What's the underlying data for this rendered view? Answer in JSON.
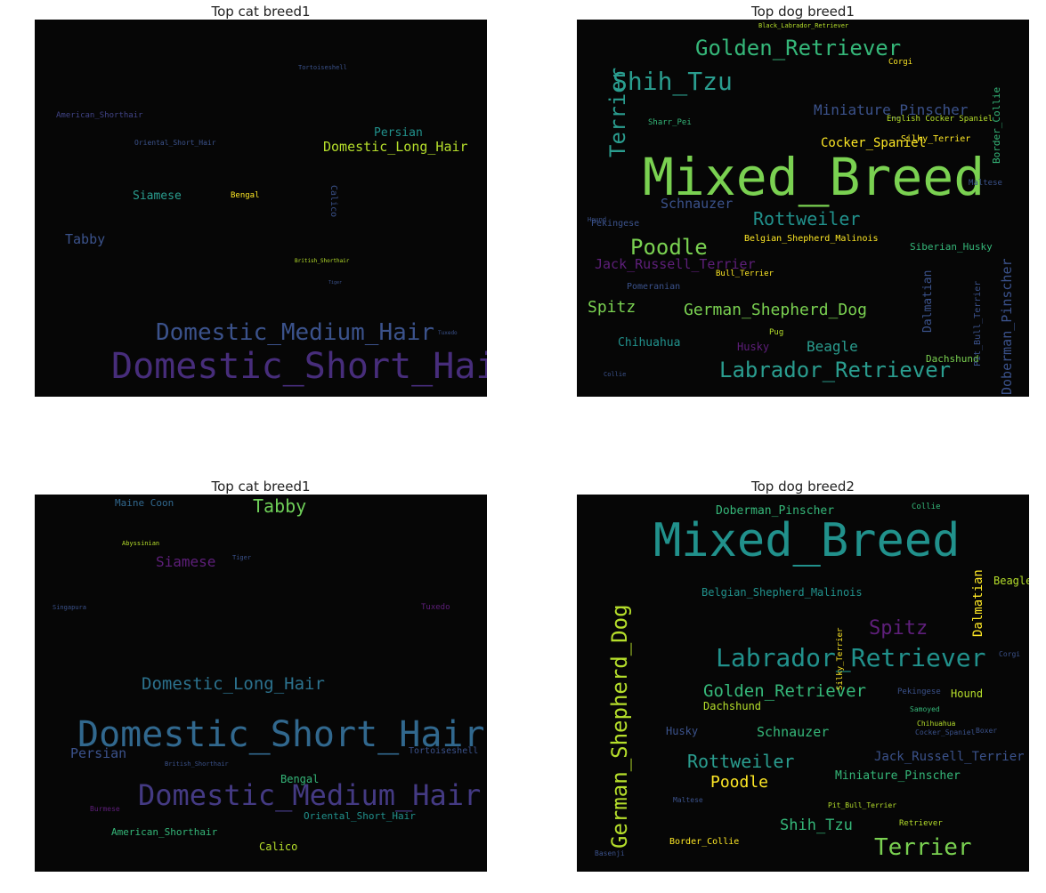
{
  "panels": [
    {
      "title": "Top cat breed1",
      "words": [
        {
          "text": "Domestic_Short_Hair",
          "color": "#472d7b"
        },
        {
          "text": "Domestic_Medium_Hair",
          "color": "#3b528b"
        },
        {
          "text": "Domestic_Long_Hair",
          "color": "#b5de2b"
        },
        {
          "text": "Persian",
          "color": "#21918c"
        },
        {
          "text": "Tabby",
          "color": "#3b528b"
        },
        {
          "text": "Siamese",
          "color": "#2a9d8f"
        },
        {
          "text": "American_Shorthair",
          "color": "#414487"
        },
        {
          "text": "Oriental_Short_Hair",
          "color": "#3b528b"
        },
        {
          "text": "Bengal",
          "color": "#fde725"
        },
        {
          "text": "Calico",
          "color": "#3b528b"
        },
        {
          "text": "Tortoiseshell",
          "color": "#3b528b"
        },
        {
          "text": "British_Shorthair",
          "color": "#b5de2b"
        },
        {
          "text": "Tuxedo",
          "color": "#3b528b"
        },
        {
          "text": "Tiger",
          "color": "#3b528b"
        }
      ]
    },
    {
      "title": "Top dog breed1",
      "words": [
        {
          "text": "Mixed_Breed",
          "color": "#7ad151"
        },
        {
          "text": "Golden_Retriever",
          "color": "#35b779"
        },
        {
          "text": "Shih_Tzu",
          "color": "#2a9d8f"
        },
        {
          "text": "Terrier",
          "color": "#2a9d8f"
        },
        {
          "text": "Miniature_Pinscher",
          "color": "#3b528b"
        },
        {
          "text": "Cocker_Spaniel",
          "color": "#fde725"
        },
        {
          "text": "Silky_Terrier",
          "color": "#fde725"
        },
        {
          "text": "Border_Collie",
          "color": "#35b779"
        },
        {
          "text": "Schnauzer",
          "color": "#3b528b"
        },
        {
          "text": "Rottweiler",
          "color": "#21918c"
        },
        {
          "text": "Pekingese",
          "color": "#3b528b"
        },
        {
          "text": "Poodle",
          "color": "#7ad151"
        },
        {
          "text": "Belgian_Shepherd_Malinois",
          "color": "#fde725"
        },
        {
          "text": "Jack_Russell_Terrier",
          "color": "#5e1f7a"
        },
        {
          "text": "Siberian_Husky",
          "color": "#35b779"
        },
        {
          "text": "Pomeranian",
          "color": "#3b528b"
        },
        {
          "text": "Bull_Terrier",
          "color": "#fde725"
        },
        {
          "text": "Spitz",
          "color": "#7ad151"
        },
        {
          "text": "German_Shepherd_Dog",
          "color": "#7ad151"
        },
        {
          "text": "Dalmatian",
          "color": "#3b528b"
        },
        {
          "text": "Doberman_Pinscher",
          "color": "#3b528b"
        },
        {
          "text": "Chihuahua",
          "color": "#21918c"
        },
        {
          "text": "Husky",
          "color": "#5e1f7a"
        },
        {
          "text": "Pug",
          "color": "#b5de2b"
        },
        {
          "text": "Beagle",
          "color": "#2a9d8f"
        },
        {
          "text": "Labrador_Retriever",
          "color": "#2a9d8f"
        },
        {
          "text": "Dachshund",
          "color": "#7ad151"
        },
        {
          "text": "Pit_Bull_Terrier",
          "color": "#3b528b"
        },
        {
          "text": "English Cocker Spaniel",
          "color": "#b5de2b"
        },
        {
          "text": "Sharr_Pei",
          "color": "#35b779"
        },
        {
          "text": "Collie",
          "color": "#3b528b"
        },
        {
          "text": "Maltese",
          "color": "#3b528b"
        },
        {
          "text": "Hound",
          "color": "#3b528b"
        },
        {
          "text": "Corgi",
          "color": "#fde725"
        },
        {
          "text": "Black_Labrador_Retriever",
          "color": "#b5de2b"
        }
      ]
    },
    {
      "title": "Top cat breed1",
      "words": [
        {
          "text": "Domestic_Short_Hair",
          "color": "#31688e"
        },
        {
          "text": "Domestic_Medium_Hair",
          "color": "#443a83"
        },
        {
          "text": "Domestic_Long_Hair",
          "color": "#2c728e"
        },
        {
          "text": "Tabby",
          "color": "#6ece58"
        },
        {
          "text": "Siamese",
          "color": "#5e1f7a"
        },
        {
          "text": "Persian",
          "color": "#3b528b"
        },
        {
          "text": "Maine Coon",
          "color": "#31688e"
        },
        {
          "text": "Bengal",
          "color": "#35b779"
        },
        {
          "text": "American_Shorthair",
          "color": "#35b779"
        },
        {
          "text": "Calico",
          "color": "#b5de2b"
        },
        {
          "text": "Oriental_Short_Hair",
          "color": "#21918c"
        },
        {
          "text": "Tortoiseshell",
          "color": "#3b528b"
        },
        {
          "text": "Tuxedo",
          "color": "#5e1f7a"
        },
        {
          "text": "Burmese",
          "color": "#5e1f7a"
        },
        {
          "text": "British_Shorthair",
          "color": "#3b528b"
        },
        {
          "text": "Singapura",
          "color": "#3b528b"
        },
        {
          "text": "Abyssinian",
          "color": "#b5de2b"
        },
        {
          "text": "Tiger",
          "color": "#3b528b"
        }
      ]
    },
    {
      "title": "Top dog breed2",
      "words": [
        {
          "text": "Mixed_Breed",
          "color": "#21918c"
        },
        {
          "text": "Doberman_Pinscher",
          "color": "#35b779"
        },
        {
          "text": "Collie",
          "color": "#35b779"
        },
        {
          "text": "Belgian_Shepherd_Malinois",
          "color": "#21918c"
        },
        {
          "text": "German_Shepherd_Dog",
          "color": "#b5de2b"
        },
        {
          "text": "Spitz",
          "color": "#5e1f7a"
        },
        {
          "text": "Labrador_Retriever",
          "color": "#21918c"
        },
        {
          "text": "Dalmatian",
          "color": "#fde725"
        },
        {
          "text": "Beagle",
          "color": "#b5de2b"
        },
        {
          "text": "Golden_Retriever",
          "color": "#35b779"
        },
        {
          "text": "Dachshund",
          "color": "#b5de2b"
        },
        {
          "text": "Hound",
          "color": "#b5de2b"
        },
        {
          "text": "Husky",
          "color": "#3b528b"
        },
        {
          "text": "Schnauzer",
          "color": "#35b779"
        },
        {
          "text": "Rottweiler",
          "color": "#2a9d8f"
        },
        {
          "text": "Jack_Russell_Terrier",
          "color": "#3b528b"
        },
        {
          "text": "Poodle",
          "color": "#fde725"
        },
        {
          "text": "Miniature_Pinscher",
          "color": "#35b779"
        },
        {
          "text": "Pit_Bull_Terrier",
          "color": "#b5de2b"
        },
        {
          "text": "Shih_Tzu",
          "color": "#35b779"
        },
        {
          "text": "Terrier",
          "color": "#7ad151"
        },
        {
          "text": "Border_Collie",
          "color": "#fde725"
        },
        {
          "text": "Maltese",
          "color": "#3b528b"
        },
        {
          "text": "Pekingese",
          "color": "#3b528b"
        },
        {
          "text": "Samoyed",
          "color": "#35b779"
        },
        {
          "text": "Chihuahua",
          "color": "#b5de2b"
        },
        {
          "text": "Cocker_Spaniel",
          "color": "#3b528b"
        },
        {
          "text": "Boxer",
          "color": "#3b528b"
        },
        {
          "text": "Retriever",
          "color": "#b5de2b"
        },
        {
          "text": "Silky_Terrier",
          "color": "#fde725"
        },
        {
          "text": "Corgi",
          "color": "#3b528b"
        },
        {
          "text": "Basenji",
          "color": "#3b528b"
        }
      ]
    }
  ]
}
